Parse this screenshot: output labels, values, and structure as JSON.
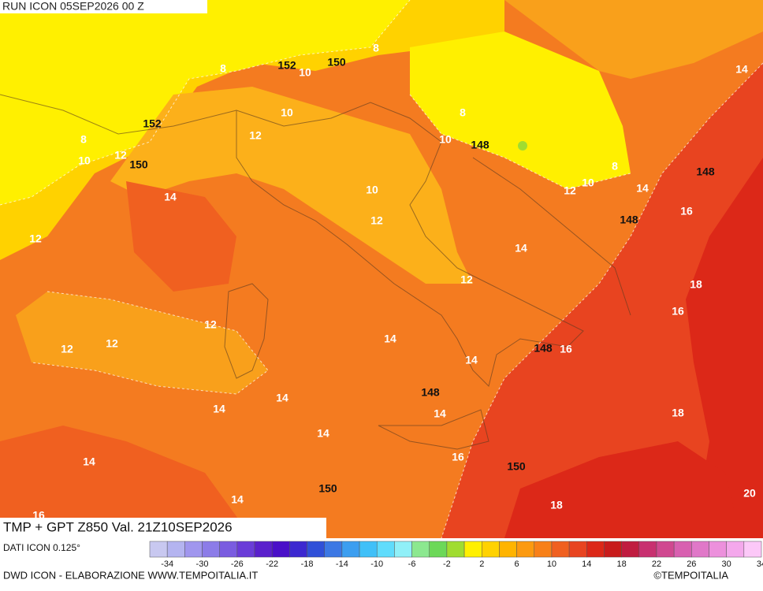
{
  "header": {
    "run": "RUN ICON 05SEP2026 00 Z",
    "field": "TMP + GPT Z850 Val. 21Z10SEP2026"
  },
  "map": {
    "temperature_labels": [
      "8",
      "8",
      "8",
      "8",
      "8",
      "10",
      "10",
      "10",
      "10",
      "10",
      "10",
      "12",
      "12",
      "12",
      "12",
      "12",
      "12",
      "12",
      "12",
      "12",
      "14",
      "14",
      "14",
      "14",
      "14",
      "14",
      "14",
      "14",
      "14",
      "14",
      "14",
      "14",
      "16",
      "16",
      "16",
      "16",
      "16",
      "18",
      "18",
      "18",
      "20"
    ],
    "geopotential_labels": [
      "152",
      "152",
      "150",
      "150",
      "150",
      "150",
      "148",
      "148",
      "148",
      "148",
      "148"
    ]
  },
  "legend": {
    "source": "DATI ICON 0.125°",
    "colors": [
      "#c8c8f0",
      "#b4b4f0",
      "#a096ee",
      "#8c7ce8",
      "#7a5ce0",
      "#6a3cd8",
      "#5a20cc",
      "#4a10c8",
      "#3c28d0",
      "#3050d8",
      "#3c78e4",
      "#3c9ef0",
      "#40c0f8",
      "#60dcfc",
      "#90f0f8",
      "#8ce890",
      "#6cd858",
      "#a0dc30",
      "#fff000",
      "#ffd200",
      "#ffb400",
      "#fc9a10",
      "#f88018",
      "#f06020",
      "#e84420",
      "#dc2818",
      "#c81c1c",
      "#c01c40",
      "#c83070",
      "#d04890",
      "#d860b0",
      "#e078c8",
      "#ec90dc",
      "#f4a8ec",
      "#fcc8f8"
    ],
    "ticks": [
      -34,
      -30,
      -26,
      -22,
      -18,
      -14,
      -10,
      -6,
      -2,
      2,
      6,
      10,
      14,
      18,
      22,
      26,
      30,
      34
    ]
  },
  "footer": {
    "credit": "DWD ICON - ELABORAZIONE WWW.TEMPOITALIA.IT",
    "copyright": "©TEMPOITALIA"
  }
}
